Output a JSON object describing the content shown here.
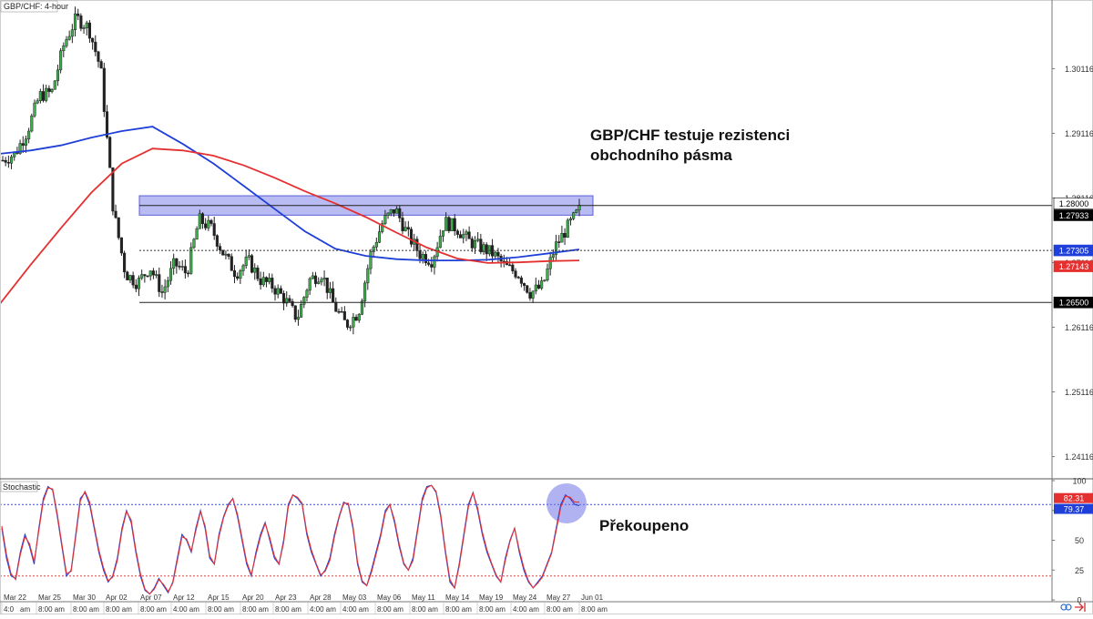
{
  "chart_data": [
    {
      "type": "candlestick",
      "title": "GBP/CHF: 4-hour",
      "ylim": [
        1.238,
        1.3115
      ],
      "y_ticks": [
        "1.30116",
        "1.29116",
        "1.28116",
        "1.27116",
        "1.26116",
        "1.25116",
        "1.24116"
      ],
      "price_labels": [
        {
          "text": "1.28000",
          "value": 1.28,
          "color": "#ffffff",
          "text_color": "#000000",
          "line": "solid"
        },
        {
          "text": "1.27933",
          "value": 1.27933,
          "color": "#000000",
          "text_color": "#ffffff",
          "line": "none"
        },
        {
          "text": "1.27305",
          "value": 1.27305,
          "color": "#1f3fd9",
          "text_color": "#ffffff",
          "line": "dotted"
        },
        {
          "text": "1.27143",
          "value": 1.27143,
          "color": "#e53030",
          "text_color": "#ffffff",
          "line": "none"
        },
        {
          "text": "1.26500",
          "value": 1.265,
          "color": "#000000",
          "text_color": "#ffffff",
          "line": "solid"
        }
      ],
      "x_date_labels": [
        "Mar 22",
        "Mar 25",
        "Mar 30",
        "Apr 02",
        "Apr 07",
        "Apr 12",
        "Apr 15",
        "Apr 20",
        "Apr 23",
        "Apr 28",
        "May 03",
        "May 06",
        "May 11",
        "May 14",
        "May 19",
        "May 24",
        "May 27",
        "Jun 01"
      ],
      "x_time_labels": [
        "4:0",
        "am",
        "8:00 am",
        "8:00 am",
        "8:00 am",
        "8:00 am",
        "4:00 am",
        "8:00 am",
        "8:00 am",
        "8:00 am",
        "4:00 am",
        "4:00 am",
        "8:00 am",
        "8:00 am",
        "8:00 am",
        "8:00 am",
        "4:00 am",
        "8:00 am",
        "8:00 am"
      ],
      "resistance_zone": [
        1.2785,
        1.2815
      ],
      "support_level": 1.265,
      "mid_level": 1.27305,
      "series": [
        {
          "name": "",
          "type": "ma",
          "color": "#1f3fd9",
          "values": [
            1.288,
            1.2885,
            1.2893,
            1.2905,
            1.2915,
            1.2922,
            1.2895,
            1.2865,
            1.283,
            1.2795,
            1.276,
            1.2733,
            1.2722,
            1.2717,
            1.2715,
            1.2715,
            1.2716,
            1.272,
            1.2726,
            1.2732
          ]
        },
        {
          "name": "",
          "type": "ma",
          "color": "#e53030",
          "values": [
            1.2648,
            1.2708,
            1.2765,
            1.282,
            1.2865,
            1.2888,
            1.2885,
            1.2877,
            1.2862,
            1.2843,
            1.2822,
            1.2803,
            1.2782,
            1.2758,
            1.2735,
            1.2718,
            1.2711,
            1.2712,
            1.2714,
            1.2715
          ]
        },
        {
          "name": "",
          "type": "close",
          "color": "#2a2a2a",
          "values": [
            1.287,
            1.288,
            1.2915,
            1.297,
            1.2975,
            1.305,
            1.309,
            1.3075,
            1.301,
            1.2795,
            1.2695,
            1.268,
            1.2705,
            1.2665,
            1.271,
            1.2695,
            1.2778,
            1.2765,
            1.2725,
            1.2695,
            1.2715,
            1.2685,
            1.2675,
            1.2655,
            1.2625,
            1.2685,
            1.2695,
            1.2645,
            1.2615,
            1.2635,
            1.2725,
            1.2775,
            1.2795,
            1.2755,
            1.2725,
            1.2715,
            1.2775,
            1.2765,
            1.2745,
            1.2735,
            1.2725,
            1.2705,
            1.2695,
            1.2665,
            1.2675,
            1.2735,
            1.2765,
            1.2793
          ]
        }
      ],
      "annotation": {
        "text": [
          "GBP/CHF testuje rezistenci",
          "obchodního pásma"
        ]
      }
    },
    {
      "type": "line",
      "title": "Stochastic",
      "ylim": [
        0,
        100
      ],
      "y_ticks": [
        "100",
        "75",
        "50",
        "25",
        "0"
      ],
      "levels": {
        "overbought": 80,
        "oversold": 20
      },
      "value_labels": [
        {
          "text": "82.31",
          "value": 82.31,
          "color": "#e53030"
        },
        {
          "text": "79.37",
          "value": 79.37,
          "color": "#1f3fd9"
        }
      ],
      "series": [
        {
          "name": "",
          "color": "#1f3fd9",
          "values": [
            60,
            35,
            20,
            18,
            40,
            55,
            45,
            30,
            60,
            85,
            95,
            92,
            70,
            45,
            20,
            25,
            55,
            85,
            90,
            80,
            60,
            40,
            25,
            15,
            20,
            35,
            60,
            75,
            65,
            40,
            20,
            8,
            5,
            10,
            18,
            12,
            6,
            15,
            35,
            55,
            50,
            40,
            60,
            75,
            60,
            35,
            30,
            55,
            70,
            80,
            85,
            70,
            50,
            30,
            20,
            40,
            55,
            65,
            50,
            35,
            30,
            50,
            80,
            88,
            85,
            80,
            55,
            40,
            30,
            20,
            25,
            35,
            55,
            70,
            82,
            80,
            60,
            30,
            15,
            12,
            25,
            40,
            55,
            75,
            80,
            65,
            45,
            30,
            25,
            35,
            60,
            85,
            95,
            96,
            90,
            70,
            40,
            15,
            10,
            30,
            55,
            80,
            90,
            75,
            55,
            40,
            30,
            20,
            15,
            35,
            50,
            60,
            40,
            25,
            15,
            10,
            15,
            20,
            30,
            40,
            60,
            80,
            88,
            85,
            80,
            79
          ]
        },
        {
          "name": "",
          "color": "#e53030",
          "values": [
            62,
            38,
            22,
            17,
            38,
            53,
            47,
            32,
            58,
            83,
            94,
            93,
            72,
            47,
            22,
            24,
            53,
            83,
            91,
            82,
            62,
            42,
            27,
            16,
            19,
            33,
            58,
            74,
            67,
            42,
            22,
            9,
            5,
            9,
            17,
            13,
            7,
            14,
            33,
            53,
            51,
            41,
            58,
            74,
            62,
            37,
            30,
            53,
            69,
            79,
            85,
            72,
            52,
            32,
            21,
            38,
            53,
            64,
            52,
            37,
            30,
            48,
            78,
            88,
            86,
            81,
            57,
            42,
            31,
            21,
            24,
            33,
            53,
            69,
            81,
            81,
            62,
            32,
            16,
            12,
            23,
            38,
            53,
            73,
            80,
            67,
            47,
            31,
            25,
            33,
            58,
            83,
            94,
            96,
            91,
            72,
            42,
            17,
            10,
            28,
            53,
            78,
            90,
            77,
            57,
            42,
            31,
            21,
            15,
            33,
            49,
            60,
            42,
            27,
            16,
            10,
            14,
            19,
            29,
            39,
            58,
            78,
            87,
            86,
            82,
            82
          ]
        }
      ],
      "annotation": {
        "text": "Překoupeno"
      }
    }
  ]
}
